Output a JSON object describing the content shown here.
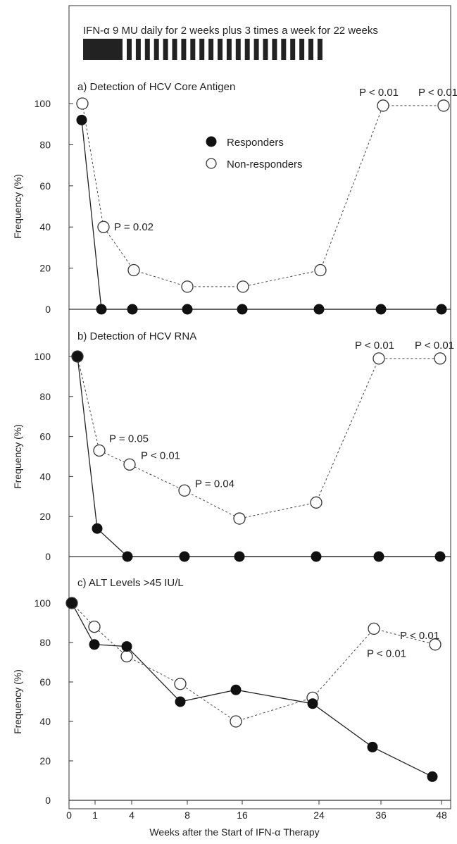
{
  "header": {
    "regimen": "IFN-α 9 MU daily for 2 weeks plus 3 times a week for 22 weeks"
  },
  "legend": {
    "responders": "Responders",
    "non_responders": "Non-responders"
  },
  "x_axis_label": "Weeks after the Start of IFN-α Therapy",
  "y_axis_label": "Frequency (%)",
  "chart_data": [
    {
      "type": "line",
      "title": "a) Detection of HCV Core Antigen",
      "xlabel": "",
      "ylabel": "Frequency (%)",
      "ylim": [
        0,
        100
      ],
      "yticks": [
        0,
        20,
        40,
        60,
        80,
        100
      ],
      "x": [
        "0",
        "1",
        "4",
        "8",
        "16",
        "24",
        "36",
        "48"
      ],
      "series": [
        {
          "name": "Responders",
          "marker": "filled",
          "values": [
            92,
            0,
            0,
            0,
            0,
            0,
            0,
            0
          ]
        },
        {
          "name": "Non-responders",
          "marker": "open",
          "values": [
            100,
            40,
            19,
            11,
            11,
            19,
            99,
            99
          ]
        }
      ],
      "annotations": [
        {
          "text": "P = 0.02",
          "index": 1
        },
        {
          "text": "P < 0.01",
          "index": 6
        },
        {
          "text": "P < 0.01",
          "index": 7
        }
      ]
    },
    {
      "type": "line",
      "title": "b) Detection of HCV RNA",
      "xlabel": "",
      "ylabel": "Frequency (%)",
      "ylim": [
        0,
        100
      ],
      "yticks": [
        0,
        20,
        40,
        60,
        80,
        100
      ],
      "x": [
        "0",
        "1",
        "4",
        "8",
        "16",
        "24",
        "36",
        "48"
      ],
      "series": [
        {
          "name": "Responders",
          "marker": "filled",
          "values": [
            100,
            14,
            0,
            0,
            0,
            0,
            0,
            0
          ]
        },
        {
          "name": "Non-responders",
          "marker": "open",
          "values": [
            100,
            53,
            46,
            33,
            19,
            27,
            99,
            99
          ]
        }
      ],
      "annotations": [
        {
          "text": "P = 0.05",
          "index": 1
        },
        {
          "text": "P < 0.01",
          "index": 2
        },
        {
          "text": "P = 0.04",
          "index": 3
        },
        {
          "text": "P < 0.01",
          "index": 6
        },
        {
          "text": "P < 0.01",
          "index": 7
        }
      ]
    },
    {
      "type": "line",
      "title": "c) ALT Levels >45 IU/L",
      "xlabel": "Weeks after the Start of IFN-α Therapy",
      "ylabel": "Frequency (%)",
      "ylim": [
        0,
        100
      ],
      "yticks": [
        0,
        20,
        40,
        60,
        80,
        100
      ],
      "x": [
        "0",
        "1",
        "4",
        "8",
        "16",
        "24",
        "36",
        "48"
      ],
      "series": [
        {
          "name": "Responders",
          "marker": "filled",
          "values": [
            100,
            79,
            78,
            50,
            56,
            49,
            27,
            12
          ]
        },
        {
          "name": "Non-responders",
          "marker": "open",
          "values": [
            100,
            88,
            73,
            59,
            40,
            52,
            87,
            79
          ]
        }
      ],
      "annotations": [
        {
          "text": "P < 0.01",
          "index": 6
        },
        {
          "text": "P < 0.01",
          "index": 7
        }
      ]
    }
  ]
}
